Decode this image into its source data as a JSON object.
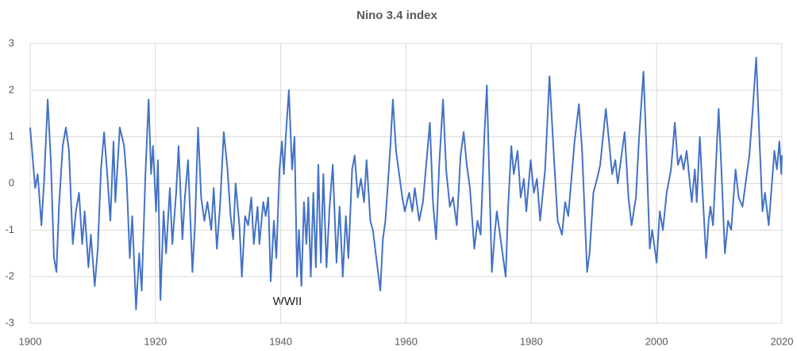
{
  "chart_data": {
    "type": "line",
    "title": "Nino 3.4 index",
    "annotations": [
      "WWII"
    ],
    "xlim": [
      1900,
      2020
    ],
    "xticks": [
      1900,
      1920,
      1940,
      1960,
      1980,
      2000,
      2020
    ],
    "ylim": [
      -3,
      3
    ],
    "yticks": [
      -3,
      -2,
      -1,
      0,
      1,
      2,
      3
    ],
    "grid": true,
    "series": [
      {
        "name": "Nino 3.4 index",
        "color": "#4472c4",
        "x": [
          1900,
          1900.8,
          1901.2,
          1901.8,
          1902.2,
          1902.8,
          1903.3,
          1903.8,
          1904.2,
          1904.6,
          1905.2,
          1905.7,
          1906.2,
          1906.8,
          1907.3,
          1907.8,
          1908.3,
          1908.7,
          1909.3,
          1909.7,
          1910.3,
          1910.8,
          1911.3,
          1911.8,
          1912.3,
          1912.8,
          1913.3,
          1913.6,
          1914.3,
          1915,
          1915.4,
          1915.9,
          1916.3,
          1916.9,
          1917.4,
          1917.8,
          1918.4,
          1918.9,
          1919.3,
          1919.6,
          1920.1,
          1920.4,
          1920.8,
          1921.3,
          1921.7,
          1922.3,
          1922.7,
          1923.3,
          1923.7,
          1924.3,
          1924.7,
          1925.2,
          1925.9,
          1926.3,
          1926.8,
          1927.3,
          1927.8,
          1928.3,
          1928.9,
          1929.3,
          1929.8,
          1930.3,
          1930.9,
          1931.5,
          1932.0,
          1932.4,
          1932.8,
          1933.4,
          1933.8,
          1934.3,
          1934.8,
          1935.3,
          1935.7,
          1936.3,
          1936.6,
          1937.2,
          1937.6,
          1938.0,
          1938.4,
          1938.9,
          1939.3,
          1939.8,
          1940.2,
          1940.5,
          1940.8,
          1941.3,
          1941.8,
          1942.2,
          1942.6,
          1942.9,
          1943.3,
          1943.7,
          1944.1,
          1944.4,
          1944.8,
          1945.2,
          1945.6,
          1946.0,
          1946.4,
          1946.8,
          1947.3,
          1947.8,
          1948.3,
          1948.9,
          1949.4,
          1949.9,
          1950.4,
          1950.8,
          1951.4,
          1951.8,
          1952.3,
          1952.8,
          1953.3,
          1953.7,
          1954.3,
          1954.7,
          1955.9,
          1956.3,
          1956.7,
          1957.5,
          1957.9,
          1958.4,
          1958.9,
          1959.4,
          1959.8,
          1960.5,
          1961,
          1961.4,
          1962.1,
          1962.7,
          1963.8,
          1964.3,
          1964.8,
          1965.3,
          1965.9,
          1966.4,
          1967.0,
          1967.5,
          1968.1,
          1968.7,
          1969.2,
          1969.7,
          1970.2,
          1970.9,
          1971.4,
          1971.9,
          1972.5,
          1972.9,
          1973.7,
          1974.2,
          1974.5,
          1975.9,
          1976.3,
          1976.8,
          1977.2,
          1977.8,
          1978.3,
          1978.8,
          1979.2,
          1979.9,
          1980.4,
          1980.9,
          1981.4,
          1982.2,
          1982.9,
          1983.6,
          1984.2,
          1984.9,
          1985.4,
          1985.9,
          1986.9,
          1987.6,
          1988.1,
          1988.9,
          1989.3,
          1989.9,
          1990.5,
          1991.0,
          1991.9,
          1992.4,
          1992.9,
          1993.4,
          1993.8,
          1994.9,
          1995.5,
          1996.0,
          1996.7,
          1997.2,
          1997.9,
          1998.3,
          1998.9,
          1999.3,
          2000.0,
          2000.5,
          2001.0,
          2001.6,
          2002.3,
          2002.9,
          2003.4,
          2003.9,
          2004.3,
          2004.8,
          2005.6,
          2006.1,
          2006.4,
          2006.9,
          2007.3,
          2007.9,
          2008.3,
          2008.6,
          2009.0,
          2009.9,
          2010.3,
          2010.9,
          2011.4,
          2011.9,
          2012.6,
          2013.1,
          2013.7,
          2014.2,
          2014.8,
          2015.3,
          2015.9,
          2016.4,
          2016.9,
          2017.3,
          2017.9,
          2018.8,
          2019.2,
          2019.6,
          2019.9,
          2020
        ],
        "values": [
          1.2,
          -0.1,
          0.2,
          -0.9,
          0,
          1.8,
          0.5,
          -1.6,
          -1.9,
          -0.5,
          0.8,
          1.2,
          0.7,
          -1.3,
          -0.6,
          -0.2,
          -1.3,
          -0.6,
          -1.8,
          -1.1,
          -2.2,
          -1.4,
          0.3,
          1.1,
          0.2,
          -0.8,
          0.9,
          -0.4,
          1.2,
          0.8,
          0.1,
          -1.6,
          -0.7,
          -2.7,
          -1.5,
          -2.3,
          0.2,
          1.8,
          0.2,
          0.8,
          -0.6,
          0.5,
          -2.5,
          -0.6,
          -1.5,
          -0.1,
          -1.3,
          -0.2,
          0.8,
          -1.2,
          -0.3,
          0.5,
          -1.9,
          -0.9,
          1.2,
          -0.3,
          -0.8,
          -0.4,
          -1.0,
          -0.1,
          -1.4,
          -0.5,
          1.1,
          0.3,
          -0.7,
          -1.2,
          0,
          -0.9,
          -2.0,
          -0.7,
          -0.9,
          -0.3,
          -1.3,
          -0.5,
          -1.3,
          -0.4,
          -0.7,
          -0.3,
          -2.1,
          -0.8,
          -1.6,
          0.3,
          0.9,
          0.2,
          1.0,
          2.0,
          0.3,
          1.0,
          -2.0,
          -1.0,
          -2.2,
          -0.4,
          -1.3,
          -0.3,
          -2.0,
          -0.2,
          -1.8,
          0.4,
          -1.7,
          0.2,
          -1.8,
          -0.5,
          0.4,
          -1.7,
          -0.5,
          -2.0,
          -0.7,
          -1.6,
          0.3,
          0.6,
          -0.3,
          0.1,
          -0.4,
          0.5,
          -0.8,
          -1.0,
          -2.3,
          -1.2,
          -0.8,
          0.8,
          1.8,
          0.7,
          0.2,
          -0.3,
          -0.6,
          -0.2,
          -0.6,
          -0.1,
          -0.8,
          -0.4,
          1.3,
          -0.4,
          -1.2,
          0.4,
          1.8,
          0.3,
          -0.5,
          -0.3,
          -0.9,
          0.6,
          1.1,
          0.4,
          -0.1,
          -1.4,
          -0.8,
          -1.1,
          1.0,
          2.1,
          -1.9,
          -1.0,
          -0.6,
          -2.0,
          -0.5,
          0.8,
          0.2,
          0.7,
          -0.3,
          0.1,
          -0.6,
          0.5,
          -0.2,
          0.1,
          -0.8,
          0.3,
          2.3,
          0.6,
          -0.8,
          -1.1,
          -0.4,
          -0.7,
          0.9,
          1.7,
          0.7,
          -1.9,
          -1.5,
          -0.2,
          0.1,
          0.4,
          1.6,
          0.9,
          0.2,
          0.5,
          0.0,
          1.1,
          -0.3,
          -0.9,
          -0.3,
          1.0,
          2.4,
          1.0,
          -1.4,
          -1.0,
          -1.7,
          -0.6,
          -1.0,
          -0.2,
          0.3,
          1.3,
          0.4,
          0.6,
          0.3,
          0.7,
          -0.4,
          0.3,
          -0.4,
          1.0,
          -0.1,
          -1.6,
          -0.8,
          -0.5,
          -0.9,
          1.6,
          0.4,
          -1.5,
          -0.8,
          -1.0,
          0.3,
          -0.3,
          -0.5,
          0.0,
          0.6,
          1.5,
          2.7,
          1.0,
          -0.6,
          -0.2,
          -0.9,
          0.7,
          0.3,
          0.9,
          0.2,
          0.6
        ]
      }
    ]
  }
}
